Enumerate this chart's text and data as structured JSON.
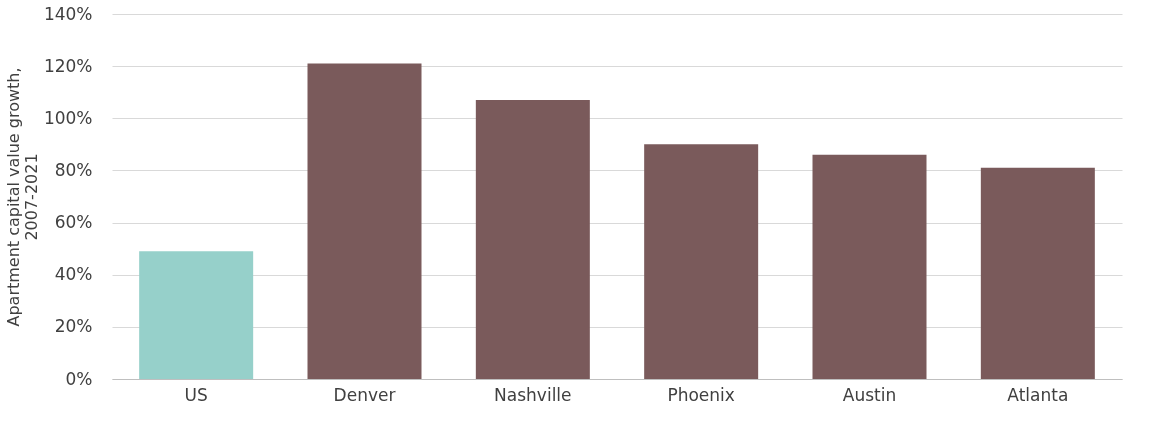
{
  "chart_data": {
    "type": "bar",
    "ylabel": "Apartment capital value growth,\n2007-2021",
    "categories": [
      "US",
      "Denver",
      "Nashville",
      "Phoenix",
      "Austin",
      "Atlanta"
    ],
    "values": [
      49,
      121,
      107,
      90,
      86,
      81
    ],
    "colors": [
      "#96d0ca",
      "#7a5a5b",
      "#7a5a5b",
      "#7a5a5b",
      "#7a5a5b",
      "#7a5a5b"
    ],
    "ylim": [
      0,
      140
    ],
    "yticks": [
      {
        "value": 0,
        "label": "0%"
      },
      {
        "value": 20,
        "label": "20%"
      },
      {
        "value": 40,
        "label": "40%"
      },
      {
        "value": 60,
        "label": "60%"
      },
      {
        "value": 80,
        "label": "80%"
      },
      {
        "value": 100,
        "label": "100%"
      },
      {
        "value": 120,
        "label": "120%"
      },
      {
        "value": 140,
        "label": "140%"
      }
    ],
    "grid": "y",
    "legend": false
  }
}
